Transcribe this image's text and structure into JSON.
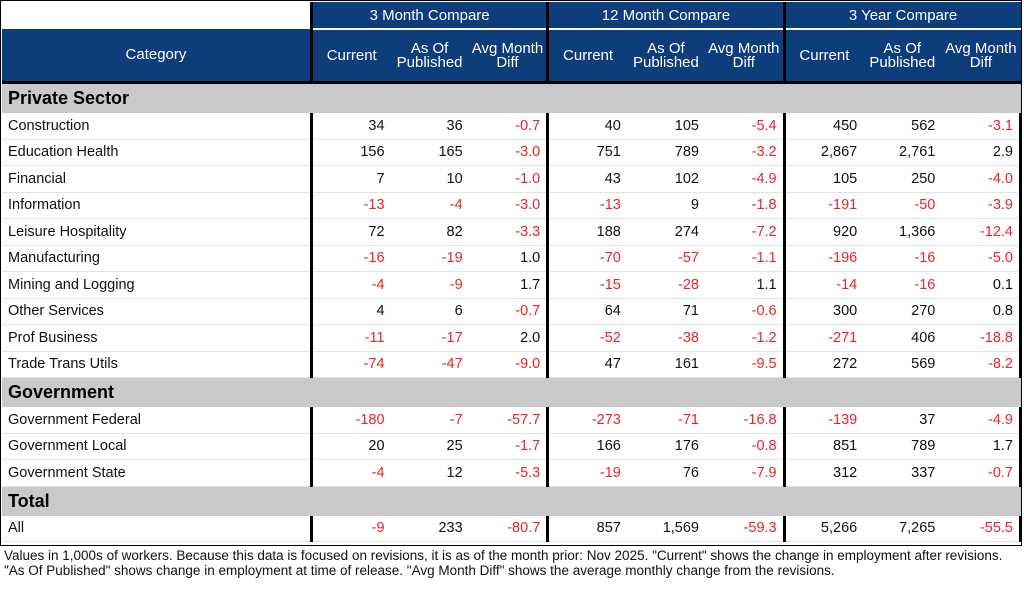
{
  "groups": [
    "3 Month Compare",
    "12 Month Compare",
    "3 Year Compare"
  ],
  "columns": {
    "category": "Category",
    "current": "Current",
    "as_of_published": "As Of Published",
    "avg_month_diff": "Avg Month Diff"
  },
  "sections": [
    {
      "title": "Private Sector",
      "rows": [
        {
          "name": "Construction",
          "values": [
            "34",
            "36",
            "-0.7",
            "40",
            "105",
            "-5.4",
            "450",
            "562",
            "-3.1"
          ]
        },
        {
          "name": "Education Health",
          "values": [
            "156",
            "165",
            "-3.0",
            "751",
            "789",
            "-3.2",
            "2,867",
            "2,761",
            "2.9"
          ]
        },
        {
          "name": "Financial",
          "values": [
            "7",
            "10",
            "-1.0",
            "43",
            "102",
            "-4.9",
            "105",
            "250",
            "-4.0"
          ]
        },
        {
          "name": "Information",
          "values": [
            "-13",
            "-4",
            "-3.0",
            "-13",
            "9",
            "-1.8",
            "-191",
            "-50",
            "-3.9"
          ]
        },
        {
          "name": "Leisure Hospitality",
          "values": [
            "72",
            "82",
            "-3.3",
            "188",
            "274",
            "-7.2",
            "920",
            "1,366",
            "-12.4"
          ]
        },
        {
          "name": "Manufacturing",
          "values": [
            "-16",
            "-19",
            "1.0",
            "-70",
            "-57",
            "-1.1",
            "-196",
            "-16",
            "-5.0"
          ]
        },
        {
          "name": "Mining and Logging",
          "values": [
            "-4",
            "-9",
            "1.7",
            "-15",
            "-28",
            "1.1",
            "-14",
            "-16",
            "0.1"
          ]
        },
        {
          "name": "Other Services",
          "values": [
            "4",
            "6",
            "-0.7",
            "64",
            "71",
            "-0.6",
            "300",
            "270",
            "0.8"
          ]
        },
        {
          "name": "Prof Business",
          "values": [
            "-11",
            "-17",
            "2.0",
            "-52",
            "-38",
            "-1.2",
            "-271",
            "406",
            "-18.8"
          ]
        },
        {
          "name": "Trade Trans Utils",
          "values": [
            "-74",
            "-47",
            "-9.0",
            "47",
            "161",
            "-9.5",
            "272",
            "569",
            "-8.2"
          ]
        }
      ]
    },
    {
      "title": "Government",
      "rows": [
        {
          "name": "Government Federal",
          "values": [
            "-180",
            "-7",
            "-57.7",
            "-273",
            "-71",
            "-16.8",
            "-139",
            "37",
            "-4.9"
          ]
        },
        {
          "name": "Government Local",
          "values": [
            "20",
            "25",
            "-1.7",
            "166",
            "176",
            "-0.8",
            "851",
            "789",
            "1.7"
          ]
        },
        {
          "name": "Government State",
          "values": [
            "-4",
            "12",
            "-5.3",
            "-19",
            "76",
            "-7.9",
            "312",
            "337",
            "-0.7"
          ]
        }
      ]
    },
    {
      "title": "Total",
      "rows": [
        {
          "name": "All",
          "values": [
            "-9",
            "233",
            "-80.7",
            "857",
            "1,569",
            "-59.3",
            "5,266",
            "7,265",
            "-55.5"
          ]
        }
      ]
    }
  ],
  "footnote": "Values in 1,000s of workers. Because this data is focused on revisions, it is as of the month prior: Nov 2025. \"Current\" shows the change in employment after revisions. \"As Of Published\" shows change in employment at time of release. \"Avg Month Diff\" shows the average monthly change from the revisions.",
  "colors": {
    "header_bg": "#0d3e7b",
    "section_bg": "#c9c9c9",
    "negative": "#e8232a"
  }
}
